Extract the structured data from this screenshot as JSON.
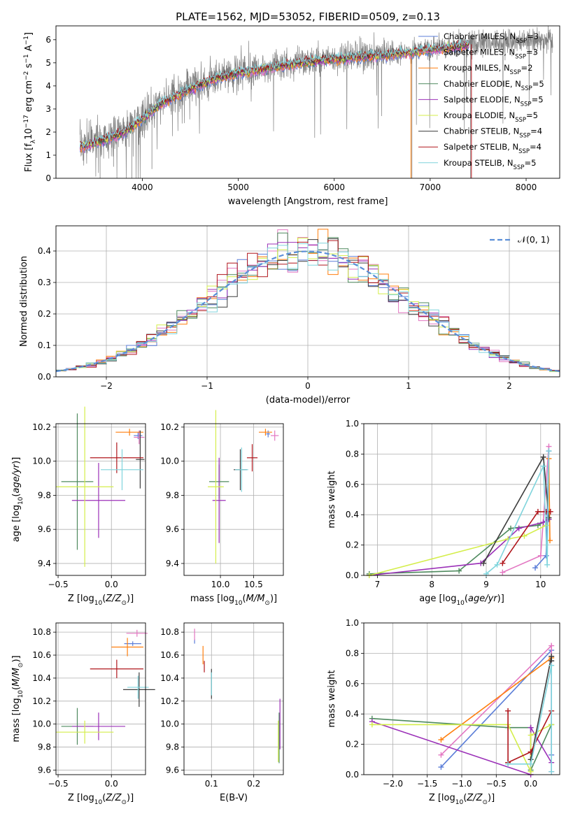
{
  "figure_title": "PLATE=1562, MJD=53052, FIBERID=0509, z=0.13",
  "colors": {
    "obs": "#808080",
    "chabrier_miles": "#5b7ed8",
    "salpeter_miles": "#e377c2",
    "kroupa_miles": "#ff7f0e",
    "chabrier_elodie": "#4e8a5e",
    "salpeter_elodie": "#9b30b8",
    "kroupa_elodie": "#d4ee4a",
    "chabrier_stelib": "#3d3d3d",
    "salpeter_stelib": "#b0161c",
    "kroupa_stelib": "#7fd4dc",
    "normal_curve": "#5b8ed8"
  },
  "chart_data": [
    {
      "id": "spectrum",
      "type": "line",
      "title": "PLATE=1562, MJD=53052, FIBERID=0509, z=0.13",
      "xlabel": "wavelength [Angstrom, rest frame]",
      "ylabel": "Flux [f_λ 10^-17 erg cm^-2 s^-1 A^-1]",
      "xlim": [
        3100,
        8350
      ],
      "ylim": [
        0,
        6.6
      ],
      "xticks": [
        "4000",
        "5000",
        "6000",
        "7000",
        "8000"
      ],
      "yticks": [
        "0",
        "1",
        "2",
        "3",
        "4",
        "5",
        "6"
      ],
      "grid": false,
      "legend": "upper-right",
      "legend_entries": [
        {
          "label": "Chabrier MILES, N",
          "sub": "SSP",
          "tail": "=3"
        },
        {
          "label": "Salpeter MILES, N",
          "sub": "SSP",
          "tail": "=3"
        },
        {
          "label": "Kroupa MILES, N",
          "sub": "SSP",
          "tail": "=2"
        },
        {
          "label": "Chabrier ELODIE, N",
          "sub": "SSP",
          "tail": "=5"
        },
        {
          "label": "Salpeter ELODIE, N",
          "sub": "SSP",
          "tail": "=5"
        },
        {
          "label": "Kroupa ELODIE, N",
          "sub": "SSP",
          "tail": "=5"
        },
        {
          "label": "Chabrier STELIB, N",
          "sub": "SSP",
          "tail": "=4"
        },
        {
          "label": "Salpeter STELIB, N",
          "sub": "SSP",
          "tail": "=4"
        },
        {
          "label": "Kroupa STELIB, N",
          "sub": "SSP",
          "tail": "=5"
        }
      ],
      "continuum": {
        "x": [
          3350,
          3600,
          3800,
          4000,
          4200,
          4400,
          4600,
          4800,
          5000,
          5300,
          5600,
          6000,
          6300,
          6600,
          7000,
          7400,
          7800,
          8200
        ],
        "y": [
          1.4,
          1.7,
          2.0,
          2.6,
          3.3,
          3.7,
          4.1,
          4.4,
          4.6,
          4.8,
          5.0,
          5.2,
          5.3,
          5.4,
          5.6,
          5.8,
          5.9,
          6.0
        ]
      },
      "obs_xrange": [
        3350,
        8280
      ],
      "model_xrange": [
        3350,
        7400
      ]
    },
    {
      "id": "residuals",
      "type": "step-histogram",
      "xlabel": "(data-model)/error",
      "ylabel": "Normed distribution",
      "xlim": [
        -2.5,
        2.5
      ],
      "ylim": [
        0,
        0.48
      ],
      "xticks": [
        "−2",
        "−1",
        "0",
        "1",
        "2"
      ],
      "yticks": [
        "0.0",
        "0.1",
        "0.2",
        "0.3",
        "0.4"
      ],
      "grid": true,
      "legend": "upper-right",
      "legend_label": "𝒩(0, 1)",
      "bin_width": 0.1
    },
    {
      "id": "age_vs_Z",
      "type": "errorbar",
      "xlabel": "Z [log10(Z/Z⊙)]",
      "ylabel": "age  [log10(age/yr)]",
      "xlim": [
        -0.52,
        0.32
      ],
      "ylim": [
        9.33,
        10.22
      ],
      "xticks": [
        "−0.5",
        "0.0"
      ],
      "yticks": [
        "9.4",
        "9.6",
        "9.8",
        "10.0",
        "10.2"
      ],
      "grid": true,
      "points": [
        {
          "c": "chabrier_miles",
          "x": 0.25,
          "xe": 0.04,
          "y": 10.15,
          "ye": 0.02
        },
        {
          "c": "salpeter_miles",
          "x": 0.26,
          "xe": 0.05,
          "y": 10.14,
          "ye": 0.04
        },
        {
          "c": "kroupa_miles",
          "x": 0.17,
          "xe": 0.13,
          "y": 10.17,
          "ye": 0.02
        },
        {
          "c": "chabrier_elodie",
          "x": -0.32,
          "xe": 0.15,
          "y": 9.88,
          "ye": 0.4
        },
        {
          "c": "salpeter_elodie",
          "x": -0.12,
          "xe": 0.25,
          "y": 9.77,
          "ye": 0.22
        },
        {
          "c": "kroupa_elodie",
          "x": -0.25,
          "xe": 0.27,
          "y": 9.85,
          "ye": 0.47
        },
        {
          "c": "chabrier_stelib",
          "x": 0.27,
          "xe": 0.04,
          "y": 10.01,
          "ye": 0.17
        },
        {
          "c": "salpeter_stelib",
          "x": 0.05,
          "xe": 0.25,
          "y": 10.02,
          "ye": 0.09
        },
        {
          "c": "kroupa_stelib",
          "x": 0.1,
          "xe": 0.2,
          "y": 9.95,
          "ye": 0.12
        }
      ]
    },
    {
      "id": "age_vs_mass",
      "type": "errorbar",
      "xlabel": "mass [log10(M/M⊙)]",
      "ylabel": "",
      "xlim": [
        9.45,
        10.95
      ],
      "ylim": [
        9.33,
        10.22
      ],
      "xticks": [
        "10.0",
        "10.5"
      ],
      "yticks": [
        "9.4",
        "9.6",
        "9.8",
        "10.0",
        "10.2"
      ],
      "grid": true,
      "points": [
        {
          "c": "chabrier_miles",
          "x": 10.72,
          "xe": 0.03,
          "y": 10.16,
          "ye": 0.02
        },
        {
          "c": "salpeter_miles",
          "x": 10.82,
          "xe": 0.06,
          "y": 10.15,
          "ye": 0.03
        },
        {
          "c": "kroupa_miles",
          "x": 10.68,
          "xe": 0.1,
          "y": 10.17,
          "ye": 0.02
        },
        {
          "c": "chabrier_elodie",
          "x": 9.98,
          "xe": 0.15,
          "y": 9.88,
          "ye": 0.1
        },
        {
          "c": "salpeter_elodie",
          "x": 9.98,
          "xe": 0.1,
          "y": 9.77,
          "ye": 0.25
        },
        {
          "c": "kroupa_elodie",
          "x": 9.93,
          "xe": 0.12,
          "y": 9.85,
          "ye": 0.45
        },
        {
          "c": "chabrier_stelib",
          "x": 10.3,
          "xe": 0.1,
          "y": 9.95,
          "ye": 0.12
        },
        {
          "c": "salpeter_stelib",
          "x": 10.48,
          "xe": 0.08,
          "y": 10.02,
          "ye": 0.08
        },
        {
          "c": "kroupa_stelib",
          "x": 10.32,
          "xe": 0.1,
          "y": 9.95,
          "ye": 0.13
        }
      ]
    },
    {
      "id": "weight_vs_age",
      "type": "line",
      "xlabel": "age  [log10(age/yr)]",
      "ylabel": "mass weight",
      "xlim": [
        6.75,
        10.35
      ],
      "ylim": [
        0,
        1
      ],
      "xticks": [
        "7",
        "8",
        "9",
        "10"
      ],
      "yticks": [
        "0.0",
        "0.2",
        "0.4",
        "0.6",
        "0.8",
        "1.0"
      ],
      "grid": true,
      "series": [
        {
          "c": "chabrier_miles",
          "x": [
            9.9,
            10.1,
            10.15
          ],
          "y": [
            0.05,
            0.13,
            0.82
          ]
        },
        {
          "c": "salpeter_miles",
          "x": [
            9.3,
            10.0,
            10.15
          ],
          "y": [
            0.02,
            0.13,
            0.85
          ]
        },
        {
          "c": "kroupa_miles",
          "x": [
            10.15,
            10.17
          ],
          "y": [
            0.77,
            0.23
          ]
        },
        {
          "c": "chabrier_elodie",
          "x": [
            6.85,
            8.5,
            9.45,
            9.95,
            10.15
          ],
          "y": [
            0.01,
            0.03,
            0.31,
            0.33,
            0.37
          ]
        },
        {
          "c": "salpeter_elodie",
          "x": [
            6.85,
            8.9,
            9.6,
            10.05,
            10.15
          ],
          "y": [
            0.0,
            0.08,
            0.31,
            0.35,
            0.37
          ]
        },
        {
          "c": "kroupa_elodie",
          "x": [
            6.85,
            9.4,
            9.7,
            10.1
          ],
          "y": [
            0.0,
            0.24,
            0.26,
            0.33
          ]
        },
        {
          "c": "chabrier_stelib",
          "x": [
            8.95,
            10.05,
            10.15
          ],
          "y": [
            0.08,
            0.78,
            0.38
          ]
        },
        {
          "c": "salpeter_stelib",
          "x": [
            9.3,
            9.95,
            10.1,
            10.18
          ],
          "y": [
            0.08,
            0.42,
            0.42,
            0.42
          ]
        },
        {
          "c": "kroupa_stelib",
          "x": [
            9.0,
            9.2,
            10.05,
            10.12,
            10.15
          ],
          "y": [
            0.01,
            0.07,
            0.72,
            0.07,
            0.82
          ]
        }
      ]
    },
    {
      "id": "mass_vs_Z",
      "type": "errorbar",
      "xlabel": "Z [log10(Z/Z⊙)]",
      "ylabel": "mass [log10(M/M⊙)]",
      "xlim": [
        -0.52,
        0.32
      ],
      "ylim": [
        9.56,
        10.88
      ],
      "xticks": [
        "−0.5",
        "0.0"
      ],
      "yticks": [
        "9.6",
        "9.8",
        "10.0",
        "10.2",
        "10.4",
        "10.6",
        "10.8"
      ],
      "grid": true,
      "points": [
        {
          "c": "chabrier_miles",
          "x": 0.2,
          "xe": 0.08,
          "y": 10.7,
          "ye": 0.02
        },
        {
          "c": "salpeter_miles",
          "x": 0.24,
          "xe": 0.1,
          "y": 10.79,
          "ye": 0.03
        },
        {
          "c": "kroupa_miles",
          "x": 0.15,
          "xe": 0.15,
          "y": 10.67,
          "ye": 0.08
        },
        {
          "c": "chabrier_elodie",
          "x": -0.32,
          "xe": 0.15,
          "y": 9.98,
          "ye": 0.16
        },
        {
          "c": "salpeter_elodie",
          "x": -0.12,
          "xe": 0.25,
          "y": 9.98,
          "ye": 0.12
        },
        {
          "c": "kroupa_elodie",
          "x": -0.25,
          "xe": 0.27,
          "y": 9.93,
          "ye": 0.1
        },
        {
          "c": "chabrier_stelib",
          "x": 0.26,
          "xe": 0.15,
          "y": 10.3,
          "ye": 0.15
        },
        {
          "c": "salpeter_stelib",
          "x": 0.05,
          "xe": 0.25,
          "y": 10.48,
          "ye": 0.08
        },
        {
          "c": "kroupa_stelib",
          "x": 0.25,
          "xe": 0.1,
          "y": 10.32,
          "ye": 0.1
        }
      ]
    },
    {
      "id": "mass_vs_ebv",
      "type": "errorbar",
      "xlabel": "E(B-V)",
      "ylabel": "",
      "xlim": [
        0.035,
        0.27
      ],
      "ylim": [
        9.56,
        10.88
      ],
      "xticks": [
        "0.1",
        "0.2"
      ],
      "yticks": [
        "9.6",
        "9.8",
        "10.0",
        "10.2",
        "10.4",
        "10.6",
        "10.8"
      ],
      "grid": true,
      "points": [
        {
          "c": "chabrier_miles",
          "x": 0.06,
          "xe": 0,
          "y": 10.72,
          "ye": 0.02
        },
        {
          "c": "salpeter_miles",
          "x": 0.06,
          "xe": 0,
          "y": 10.78,
          "ye": 0.05
        },
        {
          "c": "kroupa_miles",
          "x": 0.08,
          "xe": 0,
          "y": 10.6,
          "ye": 0.08
        },
        {
          "c": "chabrier_elodie",
          "x": 0.26,
          "xe": 0,
          "y": 9.88,
          "ye": 0.22
        },
        {
          "c": "salpeter_elodie",
          "x": 0.262,
          "xe": 0,
          "y": 10.0,
          "ye": 0.22
        },
        {
          "c": "kroupa_elodie",
          "x": 0.258,
          "xe": 0,
          "y": 9.85,
          "ye": 0.18
        },
        {
          "c": "chabrier_stelib",
          "x": 0.1,
          "xe": 0,
          "y": 10.35,
          "ye": 0.13
        },
        {
          "c": "salpeter_stelib",
          "x": 0.083,
          "xe": 0,
          "y": 10.5,
          "ye": 0.05
        },
        {
          "c": "kroupa_stelib",
          "x": 0.1,
          "xe": 0,
          "y": 10.35,
          "ye": 0.1
        }
      ]
    },
    {
      "id": "weight_vs_Z",
      "type": "line",
      "xlabel": "Z [log10(Z/Z⊙)]",
      "ylabel": "mass weight",
      "xlim": [
        -2.42,
        0.42
      ],
      "ylim": [
        0,
        1
      ],
      "xticks": [
        "−2.0",
        "−1.5",
        "−1.0",
        "−0.5",
        "0.0"
      ],
      "yticks": [
        "0.0",
        "0.2",
        "0.4",
        "0.6",
        "0.8",
        "1.0"
      ],
      "grid": true,
      "series": [
        {
          "c": "chabrier_miles",
          "x": [
            -1.3,
            0.3,
            0.3
          ],
          "y": [
            0.05,
            0.82,
            0.13
          ]
        },
        {
          "c": "salpeter_miles",
          "x": [
            -1.3,
            0.3,
            0.3
          ],
          "y": [
            0.13,
            0.85,
            0.02
          ]
        },
        {
          "c": "kroupa_miles",
          "x": [
            -1.3,
            0.3
          ],
          "y": [
            0.23,
            0.77
          ]
        },
        {
          "c": "chabrier_elodie",
          "x": [
            -2.3,
            -0.33,
            0.0,
            0.0,
            0.3
          ],
          "y": [
            0.37,
            0.31,
            0.31,
            0.03,
            0.33
          ]
        },
        {
          "c": "salpeter_elodie",
          "x": [
            -2.3,
            0.0,
            0.0,
            0.3
          ],
          "y": [
            0.35,
            0.0,
            0.31,
            0.08
          ]
        },
        {
          "c": "kroupa_elodie",
          "x": [
            -2.3,
            -0.33,
            0.0,
            0.0,
            0.3
          ],
          "y": [
            0.33,
            0.33,
            0.02,
            0.26,
            0.33
          ]
        },
        {
          "c": "chabrier_stelib",
          "x": [
            0.0,
            0.3,
            0.3
          ],
          "y": [
            0.1,
            0.78,
            0.75
          ]
        },
        {
          "c": "salpeter_stelib",
          "x": [
            -0.33,
            -0.33,
            0.0,
            0.3
          ],
          "y": [
            0.42,
            0.08,
            0.15,
            0.42
          ]
        },
        {
          "c": "kroupa_stelib",
          "x": [
            -0.33,
            0.0,
            0.3,
            0.3
          ],
          "y": [
            0.07,
            0.07,
            0.72,
            0.02
          ]
        }
      ]
    }
  ]
}
